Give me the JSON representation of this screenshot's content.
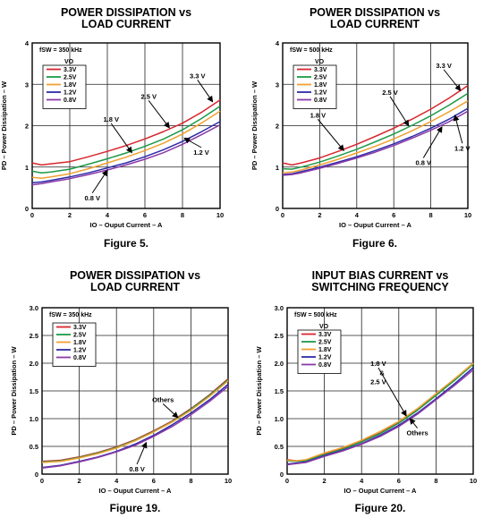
{
  "chart_data": [
    {
      "type": "line",
      "title_lines": [
        "POWER DISSIPATION vs",
        "LOAD CURRENT"
      ],
      "caption": "Figure 5.",
      "xlabel": "IO – Ouput Current – A",
      "ylabel": "PD – Power Dissipation – W",
      "xlim": [
        0,
        10
      ],
      "ylim": [
        0,
        4
      ],
      "xticks": [
        "0",
        "2",
        "4",
        "6",
        "8",
        "10"
      ],
      "yticks": [
        "0",
        "1",
        "2",
        "3",
        "4"
      ],
      "grid": true,
      "legend": {
        "fsw": "fSW = 350 kHz",
        "header": "VO",
        "placement": "top-left"
      },
      "series": [
        {
          "name": "3.3V",
          "color": "#d8262e",
          "x": [
            0,
            0.5,
            1,
            2,
            3,
            4,
            5,
            6,
            7,
            8,
            9,
            10
          ],
          "y": [
            1.1,
            1.05,
            1.08,
            1.13,
            1.25,
            1.38,
            1.52,
            1.68,
            1.86,
            2.06,
            2.32,
            2.62
          ]
        },
        {
          "name": "2.5V",
          "color": "#1e9a48",
          "x": [
            0,
            0.5,
            1,
            2,
            3,
            4,
            5,
            6,
            7,
            8,
            9,
            10
          ],
          "y": [
            0.9,
            0.86,
            0.88,
            0.95,
            1.07,
            1.2,
            1.34,
            1.5,
            1.68,
            1.9,
            2.17,
            2.47
          ]
        },
        {
          "name": "1.8V",
          "color": "#f0a030",
          "x": [
            0,
            0.5,
            1,
            2,
            3,
            4,
            5,
            6,
            7,
            8,
            9,
            10
          ],
          "y": [
            0.75,
            0.73,
            0.76,
            0.84,
            0.96,
            1.1,
            1.24,
            1.4,
            1.58,
            1.8,
            2.06,
            2.35
          ]
        },
        {
          "name": "1.2V",
          "color": "#2c2ca8",
          "x": [
            0,
            0.5,
            1,
            2,
            3,
            4,
            5,
            6,
            7,
            8,
            9,
            10
          ],
          "y": [
            0.62,
            0.64,
            0.68,
            0.76,
            0.86,
            0.98,
            1.1,
            1.25,
            1.42,
            1.62,
            1.85,
            2.1
          ]
        },
        {
          "name": "0.8V",
          "color": "#8b3aa8",
          "x": [
            0,
            0.5,
            1,
            2,
            3,
            4,
            5,
            6,
            7,
            8,
            9,
            10
          ],
          "y": [
            0.57,
            0.6,
            0.64,
            0.72,
            0.82,
            0.93,
            1.05,
            1.19,
            1.35,
            1.55,
            1.78,
            2.02
          ]
        }
      ],
      "annotations": [
        {
          "text": "3.3 V",
          "tx": 8.8,
          "ty": 3.15,
          "ax": 9.6,
          "ay": 2.58
        },
        {
          "text": "2.5 V",
          "tx": 6.2,
          "ty": 2.65,
          "ax": 7.3,
          "ay": 1.95
        },
        {
          "text": "1.8 V",
          "tx": 4.2,
          "ty": 2.1,
          "ax": 5.3,
          "ay": 1.35
        },
        {
          "text": "1.2 V",
          "tx": 9.0,
          "ty": 1.3,
          "ax": 8.1,
          "ay": 1.7
        },
        {
          "text": "0.8 V",
          "tx": 3.2,
          "ty": 0.2,
          "ax": 4.0,
          "ay": 0.92
        }
      ]
    },
    {
      "type": "line",
      "title_lines": [
        "POWER DISSIPATION vs",
        "LOAD CURRENT"
      ],
      "caption": "Figure 6.",
      "xlabel": "IO – Ouput Current – A",
      "ylabel": "PD – Power Dissipation – W",
      "xlim": [
        0,
        10
      ],
      "ylim": [
        0,
        4
      ],
      "xticks": [
        "0",
        "2",
        "4",
        "6",
        "8",
        "10"
      ],
      "yticks": [
        "0",
        "1",
        "2",
        "3",
        "4"
      ],
      "grid": true,
      "legend": {
        "fsw": "fSW = 500 kHz",
        "header": "VO",
        "placement": "top-left"
      },
      "series": [
        {
          "name": "3.3V",
          "color": "#d8262e",
          "x": [
            0,
            0.5,
            1,
            2,
            3,
            4,
            5,
            6,
            7,
            8,
            9,
            10
          ],
          "y": [
            1.1,
            1.05,
            1.1,
            1.22,
            1.38,
            1.55,
            1.74,
            1.94,
            2.16,
            2.4,
            2.67,
            2.97
          ]
        },
        {
          "name": "2.5V",
          "color": "#1e9a48",
          "x": [
            0,
            0.5,
            1,
            2,
            3,
            4,
            5,
            6,
            7,
            8,
            9,
            10
          ],
          "y": [
            0.96,
            0.95,
            1.0,
            1.12,
            1.27,
            1.43,
            1.61,
            1.8,
            2.01,
            2.24,
            2.5,
            2.78
          ]
        },
        {
          "name": "1.8V",
          "color": "#f0a030",
          "x": [
            0,
            0.5,
            1,
            2,
            3,
            4,
            5,
            6,
            7,
            8,
            9,
            10
          ],
          "y": [
            0.86,
            0.88,
            0.93,
            1.05,
            1.19,
            1.34,
            1.5,
            1.68,
            1.88,
            2.1,
            2.34,
            2.6
          ]
        },
        {
          "name": "1.2V",
          "color": "#2c2ca8",
          "x": [
            0,
            0.5,
            1,
            2,
            3,
            4,
            5,
            6,
            7,
            8,
            9,
            10
          ],
          "y": [
            0.82,
            0.84,
            0.89,
            1.0,
            1.12,
            1.25,
            1.4,
            1.56,
            1.74,
            1.94,
            2.16,
            2.42
          ]
        },
        {
          "name": "0.8V",
          "color": "#8b3aa8",
          "x": [
            0,
            0.5,
            1,
            2,
            3,
            4,
            5,
            6,
            7,
            8,
            9,
            10
          ],
          "y": [
            0.8,
            0.82,
            0.86,
            0.97,
            1.09,
            1.22,
            1.36,
            1.52,
            1.7,
            1.89,
            2.1,
            2.35
          ]
        }
      ],
      "annotations": [
        {
          "text": "3.3 V",
          "tx": 8.7,
          "ty": 3.4,
          "ax": 9.6,
          "ay": 2.85
        },
        {
          "text": "2.5 V",
          "tx": 5.8,
          "ty": 2.75,
          "ax": 6.8,
          "ay": 2.0
        },
        {
          "text": "1.8 V",
          "tx": 1.9,
          "ty": 2.2,
          "ax": 3.3,
          "ay": 1.4
        },
        {
          "text": "1.2 V",
          "tx": 9.7,
          "ty": 1.4,
          "ax": 9.3,
          "ay": 2.25
        },
        {
          "text": "0.8 V",
          "tx": 7.6,
          "ty": 1.05,
          "ax": 8.6,
          "ay": 1.97
        }
      ]
    },
    {
      "type": "line",
      "title_lines": [
        "POWER DISSIPATION vs",
        "LOAD CURRENT"
      ],
      "caption": "Figure 19.",
      "xlabel": "IO – Ouput Current – A",
      "ylabel": "PD – Power Dissipation – W",
      "xlim": [
        0,
        10
      ],
      "ylim": [
        0,
        3
      ],
      "xticks": [
        "0",
        "2",
        "4",
        "6",
        "8",
        "10"
      ],
      "yticks": [
        "0",
        "0.5",
        "1.0",
        "1.5",
        "2.0",
        "2.5",
        "3.0"
      ],
      "grid": true,
      "legend": {
        "fsw": "fSW = 350 kHz",
        "header": "",
        "placement": "top-left"
      },
      "series": [
        {
          "name": "3.3V",
          "color": "#d8262e",
          "x": [
            0,
            1,
            2,
            3,
            4,
            5,
            6,
            7,
            8,
            9,
            10
          ],
          "y": [
            0.23,
            0.25,
            0.31,
            0.39,
            0.49,
            0.62,
            0.78,
            0.96,
            1.18,
            1.43,
            1.72
          ]
        },
        {
          "name": "2.5V",
          "color": "#1e9a48",
          "x": [
            0,
            1,
            2,
            3,
            4,
            5,
            6,
            7,
            8,
            9,
            10
          ],
          "y": [
            0.22,
            0.24,
            0.3,
            0.38,
            0.48,
            0.61,
            0.77,
            0.95,
            1.17,
            1.42,
            1.7
          ]
        },
        {
          "name": "1.8V",
          "color": "#f0a030",
          "x": [
            0,
            1,
            2,
            3,
            4,
            5,
            6,
            7,
            8,
            9,
            10
          ],
          "y": [
            0.21,
            0.23,
            0.29,
            0.37,
            0.47,
            0.6,
            0.76,
            0.94,
            1.15,
            1.4,
            1.68
          ]
        },
        {
          "name": "1.2V",
          "color": "#2c2ca8",
          "x": [
            0,
            1,
            2,
            3,
            4,
            5,
            6,
            7,
            8,
            9,
            10
          ],
          "y": [
            0.12,
            0.16,
            0.23,
            0.31,
            0.41,
            0.54,
            0.7,
            0.89,
            1.1,
            1.34,
            1.62
          ]
        },
        {
          "name": "0.8V",
          "color": "#8b3aa8",
          "x": [
            0,
            1,
            2,
            3,
            4,
            5,
            6,
            7,
            8,
            9,
            10
          ],
          "y": [
            0.11,
            0.15,
            0.22,
            0.3,
            0.4,
            0.52,
            0.68,
            0.86,
            1.07,
            1.31,
            1.58
          ]
        }
      ],
      "annotations": [
        {
          "text": "Others",
          "tx": 6.5,
          "ty": 1.3,
          "ax": 7.3,
          "ay": 1.02
        },
        {
          "text": "0.8 V",
          "tx": 5.1,
          "ty": 0.05,
          "ax": 5.6,
          "ay": 0.57
        }
      ]
    },
    {
      "type": "line",
      "title_lines": [
        "INPUT BIAS CURRENT vs",
        "SWITCHING FREQUENCY"
      ],
      "caption": "Figure 20.",
      "xlabel": "IO – Ouput Current – A",
      "ylabel": "PD – Power Dissipation – W",
      "xlim": [
        0,
        10
      ],
      "ylim": [
        0,
        3
      ],
      "xticks": [
        "0",
        "2",
        "4",
        "6",
        "8",
        "10"
      ],
      "yticks": [
        "0",
        "0.5",
        "1.0",
        "1.5",
        "2.0",
        "2.5",
        "3.0"
      ],
      "grid": true,
      "legend": {
        "fsw": "fSW = 500 kHz",
        "header": "VO",
        "placement": "top-left"
      },
      "series": [
        {
          "name": "3.3V",
          "color": "#d8262e",
          "x": [
            0,
            0.5,
            1,
            2,
            3,
            4,
            5,
            6,
            7,
            8,
            9,
            10
          ],
          "y": [
            0.26,
            0.24,
            0.25,
            0.36,
            0.46,
            0.59,
            0.74,
            0.93,
            1.16,
            1.43,
            1.7,
            2.0
          ]
        },
        {
          "name": "2.5V",
          "color": "#1e9a48",
          "x": [
            0,
            0.5,
            1,
            2,
            3,
            4,
            5,
            6,
            7,
            8,
            9,
            10
          ],
          "y": [
            0.24,
            0.23,
            0.24,
            0.35,
            0.45,
            0.58,
            0.73,
            0.92,
            1.15,
            1.42,
            1.69,
            1.98
          ]
        },
        {
          "name": "1.8V",
          "color": "#f0a030",
          "x": [
            0,
            0.5,
            1,
            2,
            3,
            4,
            5,
            6,
            7,
            8,
            9,
            10
          ],
          "y": [
            0.25,
            0.24,
            0.26,
            0.38,
            0.48,
            0.61,
            0.77,
            0.95,
            1.18,
            1.45,
            1.72,
            2.0
          ]
        },
        {
          "name": "1.2V",
          "color": "#2c2ca8",
          "x": [
            0,
            0.5,
            1,
            2,
            3,
            4,
            5,
            6,
            7,
            8,
            9,
            10
          ],
          "y": [
            0.18,
            0.2,
            0.22,
            0.33,
            0.43,
            0.55,
            0.7,
            0.88,
            1.1,
            1.36,
            1.63,
            1.92
          ]
        },
        {
          "name": "0.8V",
          "color": "#8b3aa8",
          "x": [
            0,
            0.5,
            1,
            2,
            3,
            4,
            5,
            6,
            7,
            8,
            9,
            10
          ],
          "y": [
            0.17,
            0.19,
            0.21,
            0.32,
            0.42,
            0.54,
            0.68,
            0.86,
            1.08,
            1.34,
            1.6,
            1.88
          ]
        }
      ],
      "annotations": [
        {
          "text": "1.8 V",
          "tx": 4.9,
          "ty": 1.95,
          "ax": 6.4,
          "ay": 1.05
        },
        {
          "text": "&",
          "tx": 5.1,
          "ty": 1.78,
          "ax": null,
          "ay": null
        },
        {
          "text": "2.5 V",
          "tx": 4.9,
          "ty": 1.62,
          "ax": null,
          "ay": null
        },
        {
          "text": "Others",
          "tx": 7.0,
          "ty": 0.7,
          "ax": 6.6,
          "ay": 1.0
        }
      ]
    }
  ]
}
